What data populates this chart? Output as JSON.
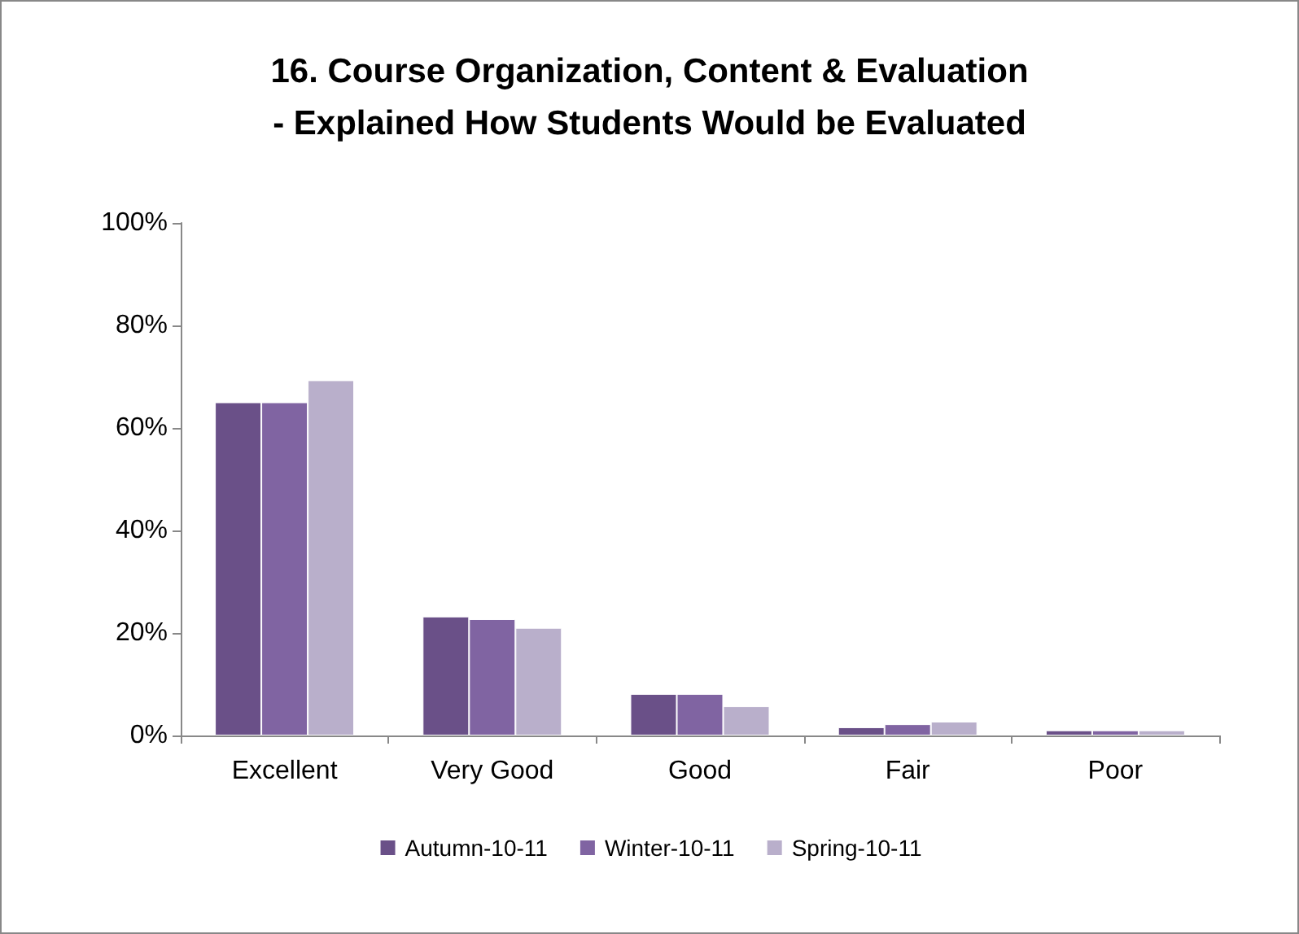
{
  "chart_data": {
    "type": "bar",
    "title": "16. Course Organization, Content & Evaluation\n- Explained How Students Would be Evaluated",
    "categories": [
      "Excellent",
      "Very Good",
      "Good",
      "Fair",
      "Poor"
    ],
    "series": [
      {
        "name": "Autumn-10-11",
        "color": "#6a5088",
        "values": [
          65,
          23.2,
          8.1,
          1.6,
          1.0
        ]
      },
      {
        "name": "Winter-10-11",
        "color": "#8064a2",
        "values": [
          65,
          22.7,
          8.1,
          2.2,
          1.0
        ]
      },
      {
        "name": "Spring-10-11",
        "color": "#b9afcb",
        "values": [
          69.3,
          21.0,
          5.7,
          2.7,
          1.0
        ]
      }
    ],
    "ylim": [
      0,
      100
    ],
    "yticks": [
      {
        "value": 0,
        "label": "0%"
      },
      {
        "value": 20,
        "label": "20%"
      },
      {
        "value": 40,
        "label": "40%"
      },
      {
        "value": 60,
        "label": "60%"
      },
      {
        "value": 80,
        "label": "80%"
      },
      {
        "value": 100,
        "label": "100%"
      }
    ],
    "grid": false,
    "legend": "bottom"
  }
}
